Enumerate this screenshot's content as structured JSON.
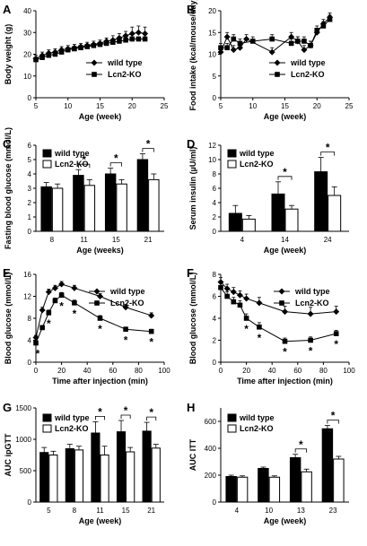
{
  "chart_data": [
    {
      "panel": "A",
      "type": "line",
      "xlabel": "Age (week)",
      "ylabel": "Body weight (g)",
      "xlim": [
        5,
        25
      ],
      "ylim": [
        0,
        40
      ],
      "xticks": [
        5,
        10,
        15,
        20,
        25
      ],
      "yticks": [
        0,
        10,
        20,
        30,
        40
      ],
      "series": [
        {
          "name": "wild type",
          "marker": "diamond",
          "x": [
            5,
            6,
            7,
            8,
            9,
            10,
            11,
            12,
            13,
            14,
            15,
            16,
            17,
            18,
            19,
            20,
            21,
            22
          ],
          "y": [
            18,
            19.5,
            20.5,
            21,
            22,
            22.5,
            23,
            23.5,
            24,
            24.5,
            25,
            26,
            26.5,
            27.5,
            28.5,
            29.5,
            30,
            29.5
          ],
          "err": [
            1.5,
            1.5,
            1.5,
            1.5,
            1.5,
            1.5,
            1.5,
            1.5,
            1.5,
            1.5,
            1.5,
            1.5,
            2,
            2,
            2,
            3,
            3,
            3
          ]
        },
        {
          "name": "Lcn2-KO",
          "marker": "square",
          "x": [
            5,
            6,
            7,
            8,
            9,
            10,
            11,
            12,
            13,
            14,
            15,
            16,
            17,
            18,
            19,
            20,
            21,
            22
          ],
          "y": [
            17.5,
            18.5,
            19.5,
            20,
            21,
            22,
            22.5,
            23,
            23.5,
            24,
            24.5,
            25,
            25.5,
            26,
            26.5,
            27,
            27,
            27
          ],
          "err": [
            1,
            1,
            1,
            1,
            1,
            1,
            1,
            1,
            1,
            1,
            1,
            1,
            1,
            1,
            1,
            1,
            1,
            1
          ]
        }
      ],
      "legend": [
        "wild type",
        "Lcn2-KO"
      ],
      "legend_pos": "bottom-right"
    },
    {
      "panel": "B",
      "type": "line",
      "xlabel": "Age (week)",
      "ylabel": "Food intake (kcal/mouse/day)",
      "xlim": [
        5,
        25
      ],
      "ylim": [
        0,
        20
      ],
      "xticks": [
        5,
        10,
        15,
        20,
        25
      ],
      "yticks": [
        0,
        5,
        10,
        15,
        20
      ],
      "series": [
        {
          "name": "wild type",
          "marker": "diamond",
          "x": [
            5,
            6,
            7,
            8,
            9,
            13,
            16,
            17,
            18,
            19,
            20,
            21,
            22
          ],
          "y": [
            10.5,
            14,
            11,
            11.5,
            13.5,
            10.5,
            14,
            13,
            11,
            12,
            15,
            17,
            18.5
          ],
          "err": [
            1,
            1,
            1,
            1,
            1,
            1,
            1,
            1,
            1,
            1,
            1,
            1,
            1
          ]
        },
        {
          "name": "Lcn2-KO",
          "marker": "square",
          "x": [
            5,
            6,
            7,
            8,
            10,
            13,
            16,
            17,
            18,
            19,
            20,
            21,
            22
          ],
          "y": [
            11.5,
            11.5,
            13.5,
            12.5,
            13,
            13.5,
            12.5,
            13,
            13,
            12,
            15.5,
            16.5,
            18
          ],
          "err": [
            1,
            1,
            1,
            1,
            1,
            1,
            1,
            1,
            1,
            1,
            1,
            1,
            1
          ]
        }
      ],
      "legend": [
        "wild type",
        "Lcn2-KO"
      ],
      "legend_pos": "bottom-right"
    },
    {
      "panel": "C",
      "type": "bar",
      "xlabel": "Age (weeks)",
      "ylabel": "Fasting blood glucose (mmol/L)",
      "ylim": [
        0,
        6
      ],
      "yticks": [
        0,
        1,
        2,
        3,
        4,
        5,
        6
      ],
      "categories": [
        "8",
        "11",
        "15",
        "21"
      ],
      "series": [
        {
          "name": "wild type",
          "values": [
            3.1,
            3.9,
            4.0,
            5.0
          ],
          "err": [
            0.3,
            0.4,
            0.4,
            0.4
          ]
        },
        {
          "name": "Lcn2-KO",
          "values": [
            3.0,
            3.2,
            3.3,
            3.6
          ],
          "err": [
            0.3,
            0.4,
            0.3,
            0.4
          ]
        }
      ],
      "significance": [
        1,
        2,
        3
      ],
      "sig_label": "*",
      "legend": [
        "wild type",
        "Lcn2-KO"
      ],
      "legend_pos": "top-left"
    },
    {
      "panel": "D",
      "type": "bar",
      "xlabel": "Age (week)",
      "ylabel": "Serum insulin (µU/ml)",
      "ylim": [
        0,
        12
      ],
      "yticks": [
        0,
        2,
        4,
        6,
        8,
        10,
        12
      ],
      "categories": [
        "4",
        "14",
        "24"
      ],
      "series": [
        {
          "name": "wild type",
          "values": [
            2.5,
            5.2,
            8.3
          ],
          "err": [
            1.1,
            1.7,
            2.0
          ]
        },
        {
          "name": "Lcn2-KO",
          "values": [
            1.7,
            3.1,
            5.0
          ],
          "err": [
            0.5,
            0.5,
            1.2
          ]
        }
      ],
      "significance": [
        1,
        2
      ],
      "sig_label": "*",
      "legend": [
        "wild type",
        "Lcn2-KO"
      ],
      "legend_pos": "top-left"
    },
    {
      "panel": "E",
      "type": "line",
      "xlabel": "Time after injection (min)",
      "ylabel": "Blood glucose (mmol/L)",
      "xlim": [
        0,
        100
      ],
      "ylim": [
        0,
        16
      ],
      "xticks": [
        0,
        20,
        40,
        60,
        80,
        100
      ],
      "yticks": [
        0,
        4,
        8,
        12,
        16
      ],
      "series": [
        {
          "name": "wild type",
          "marker": "diamond",
          "x": [
            0,
            5,
            10,
            15,
            20,
            30,
            50,
            70,
            90
          ],
          "y": [
            4.5,
            9.5,
            12.8,
            13.5,
            14.2,
            13.5,
            12,
            10,
            8.5
          ],
          "err": [
            0.4,
            0.5,
            0.5,
            0.5,
            0.5,
            0.5,
            0.5,
            0.5,
            0.5
          ]
        },
        {
          "name": "Lcn2-KO",
          "marker": "square",
          "x": [
            0,
            5,
            10,
            15,
            20,
            30,
            50,
            70,
            90
          ],
          "y": [
            3.5,
            6.3,
            9,
            11.2,
            12.2,
            10.8,
            8,
            6,
            5.6
          ],
          "err": [
            0.3,
            0.4,
            0.5,
            0.5,
            0.5,
            0.5,
            0.5,
            0.4,
            0.4
          ]
        }
      ],
      "significance_x": [
        0,
        10,
        20,
        30,
        50,
        70,
        90
      ],
      "sig_label": "*",
      "legend": [
        "wild type",
        "Lcn2-KO"
      ],
      "legend_pos": "top-right"
    },
    {
      "panel": "F",
      "type": "line",
      "xlabel": "Time after injection (min)",
      "ylabel": "Blood glucose (mmol/L)",
      "xlim": [
        0,
        100
      ],
      "ylim": [
        0,
        8
      ],
      "xticks": [
        0,
        20,
        40,
        60,
        80,
        100
      ],
      "yticks": [
        0,
        2,
        4,
        6,
        8
      ],
      "series": [
        {
          "name": "wild type",
          "marker": "diamond",
          "x": [
            0,
            5,
            10,
            15,
            20,
            30,
            50,
            70,
            90
          ],
          "y": [
            7.3,
            6.7,
            6.4,
            6.1,
            5.8,
            5.4,
            4.6,
            4.4,
            4.6
          ],
          "err": [
            0.4,
            0.4,
            0.4,
            0.4,
            0.4,
            0.5,
            0.5,
            0.6,
            0.5
          ]
        },
        {
          "name": "Lcn2-KO",
          "marker": "square",
          "x": [
            0,
            5,
            10,
            15,
            20,
            30,
            50,
            70,
            90
          ],
          "y": [
            6.8,
            6.0,
            5.5,
            5.2,
            4.0,
            3.2,
            1.9,
            2.0,
            2.6
          ],
          "err": [
            0.4,
            0.4,
            0.4,
            0.4,
            0.4,
            0.4,
            0.3,
            0.3,
            0.3
          ]
        }
      ],
      "significance_x": [
        20,
        30,
        50,
        70,
        90
      ],
      "sig_label": "*",
      "legend": [
        "wild type",
        "Lcn2-KO"
      ],
      "legend_pos": "top-right"
    },
    {
      "panel": "G",
      "type": "bar",
      "xlabel": "Age (week)",
      "ylabel": "AUC ipGTT",
      "ylim": [
        0,
        1500
      ],
      "yticks": [
        0,
        500,
        1000,
        1500
      ],
      "categories": [
        "5",
        "8",
        "11",
        "15",
        "21"
      ],
      "series": [
        {
          "name": "wild type",
          "values": [
            790,
            850,
            1100,
            1120,
            1130
          ],
          "err": [
            80,
            70,
            180,
            180,
            140
          ]
        },
        {
          "name": "Lcn2-KO",
          "values": [
            750,
            830,
            750,
            800,
            860
          ],
          "err": [
            60,
            60,
            140,
            70,
            60
          ]
        }
      ],
      "significance": [
        2,
        3,
        4
      ],
      "sig_label": "*",
      "legend": [
        "wild type",
        "Lcn2-KO"
      ],
      "legend_pos": "top-left"
    },
    {
      "panel": "H",
      "type": "bar",
      "xlabel": "Age (week)",
      "ylabel": "AUC ITT",
      "ylim": [
        0,
        700
      ],
      "yticks": [
        0,
        200,
        400,
        600
      ],
      "categories": [
        "4",
        "10",
        "13",
        "23"
      ],
      "series": [
        {
          "name": "wild type",
          "values": [
            190,
            250,
            330,
            545
          ],
          "err": [
            10,
            10,
            25,
            25
          ]
        },
        {
          "name": "Lcn2-KO",
          "values": [
            185,
            185,
            225,
            320
          ],
          "err": [
            10,
            10,
            20,
            20
          ]
        }
      ],
      "significance": [
        2,
        3
      ],
      "sig_label": "*",
      "legend": [
        "wild type",
        "Lcn2-KO"
      ],
      "legend_pos": "top-left"
    }
  ]
}
